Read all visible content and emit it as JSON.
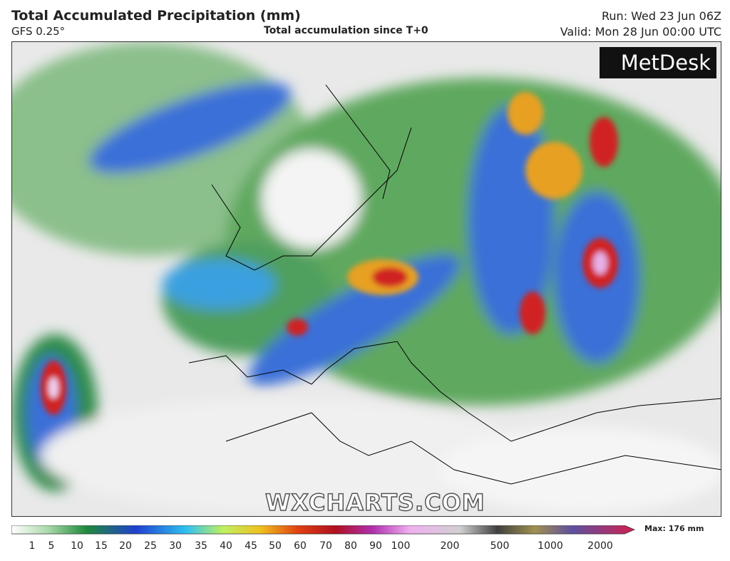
{
  "header": {
    "title": "Total Accumulated Precipitation (mm)",
    "model": "GFS 0.25°",
    "subtitle": "Total accumulation since T+0",
    "run": "Run: Wed 23 Jun 06Z",
    "valid": "Valid: Mon 28 Jun 00:00 UTC"
  },
  "map": {
    "logo": "MetDesk",
    "watermark": "WXCHARTS.COM"
  },
  "legend": {
    "ticks": [
      1,
      5,
      10,
      15,
      20,
      25,
      30,
      35,
      40,
      45,
      50,
      60,
      70,
      80,
      90,
      100,
      200,
      500,
      1000,
      2000
    ],
    "max_label": "Max: 176 mm"
  }
}
